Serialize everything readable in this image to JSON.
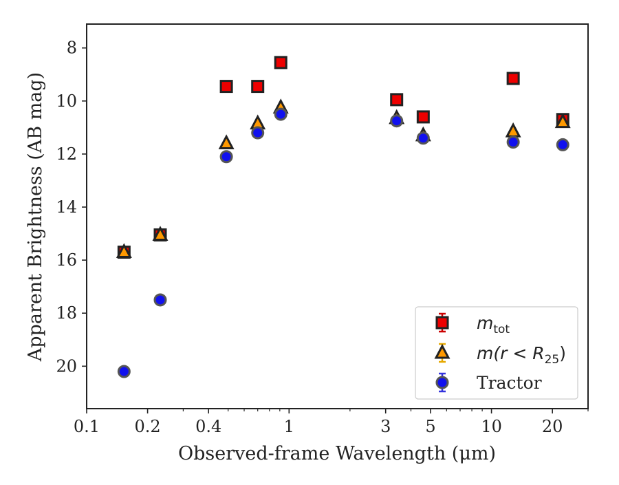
{
  "chart_data": {
    "type": "scatter",
    "title": "",
    "xlabel": "Observed-frame Wavelength (μm)",
    "ylabel": "Apparent Brightness (AB mag)",
    "xscale": "log",
    "xlim": [
      0.1,
      30
    ],
    "ylim": [
      21.6,
      7.1
    ],
    "y_inverted": true,
    "xticks": [
      {
        "value": 0.1,
        "label": "0.1"
      },
      {
        "value": 0.2,
        "label": "0.2"
      },
      {
        "value": 0.4,
        "label": "0.4"
      },
      {
        "value": 1,
        "label": "1"
      },
      {
        "value": 3,
        "label": "3"
      },
      {
        "value": 5,
        "label": "5"
      },
      {
        "value": 10,
        "label": "10"
      },
      {
        "value": 20,
        "label": "20"
      }
    ],
    "yticks": [
      {
        "value": 8,
        "label": "8"
      },
      {
        "value": 10,
        "label": "10"
      },
      {
        "value": 12,
        "label": "12"
      },
      {
        "value": 14,
        "label": "14"
      },
      {
        "value": 16,
        "label": "16"
      },
      {
        "value": 18,
        "label": "18"
      },
      {
        "value": 20,
        "label": "20"
      }
    ],
    "legend_position": "lower-right",
    "series": [
      {
        "name": "m_tot",
        "label_main": "m",
        "label_sub": "tot",
        "marker": "square",
        "color": "#ee0000",
        "edge_color": "#222222",
        "errbar_color": "#cc0000",
        "x": [
          0.153,
          0.231,
          0.49,
          0.7,
          0.91,
          3.4,
          4.6,
          12.8,
          22.5
        ],
        "y": [
          15.7,
          15.05,
          9.45,
          9.45,
          8.55,
          9.95,
          10.6,
          9.15,
          10.7
        ]
      },
      {
        "name": "m(r<R25)",
        "label_main": "m(r < R",
        "label_sub": "25",
        "label_end": ")",
        "marker": "triangle",
        "color": "#ff9900",
        "edge_color": "#222222",
        "errbar_color": "#e6a800",
        "x": [
          0.153,
          0.231,
          0.49,
          0.7,
          0.91,
          3.4,
          4.6,
          12.8,
          22.5
        ],
        "y": [
          15.7,
          15.05,
          11.6,
          10.85,
          10.25,
          10.65,
          11.3,
          11.15,
          10.8
        ]
      },
      {
        "name": "Tractor",
        "label_main": "Tractor",
        "marker": "circle",
        "color": "#1111ee",
        "edge_color": "#555555",
        "errbar_color": "#3333dd",
        "x": [
          0.153,
          0.231,
          0.49,
          0.7,
          0.91,
          3.4,
          4.6,
          12.8,
          22.5
        ],
        "y": [
          20.2,
          17.5,
          12.1,
          11.2,
          10.5,
          10.75,
          11.4,
          11.55,
          11.65
        ]
      }
    ]
  }
}
